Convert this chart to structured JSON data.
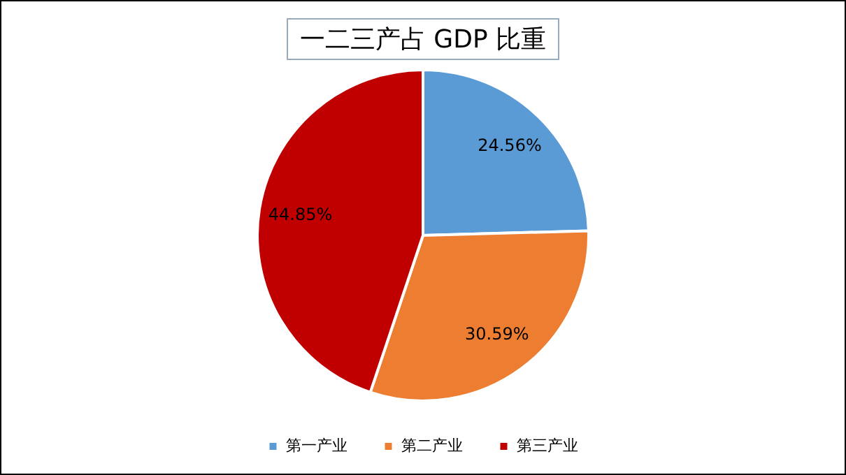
{
  "chart_data": {
    "type": "pie",
    "title": "一二三产占 GDP 比重",
    "categories": [
      "第一产业",
      "第二产业",
      "第三产业"
    ],
    "values": [
      24.56,
      30.59,
      44.85
    ],
    "value_labels": [
      "24.56%",
      "30.59%",
      "44.85%"
    ],
    "colors": [
      "#5b9bd5",
      "#ed7d31",
      "#c00000"
    ],
    "legend": "bottom"
  }
}
